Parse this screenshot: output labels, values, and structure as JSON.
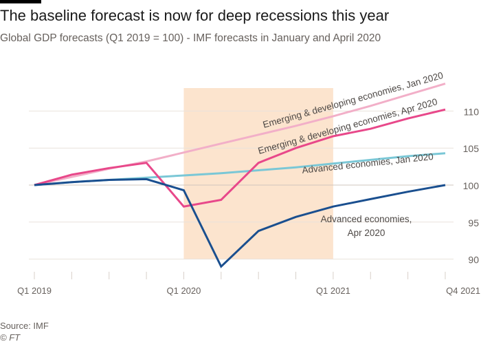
{
  "header": {
    "title": "The baseline forecast is now for deep recessions this year",
    "subtitle": "Global GDP forecasts (Q1 2019 = 100) - IMF forecasts in January and April 2020"
  },
  "footer": {
    "source": "Source: IMF",
    "copyright": "© FT"
  },
  "chart_data": {
    "type": "line",
    "title": "The baseline forecast is now for deep recessions this year",
    "subtitle": "Global GDP forecasts (Q1 2019 = 100) - IMF forecasts in January and April 2020",
    "xlabel": "",
    "ylabel": "",
    "x": [
      "Q1 2019",
      "Q2 2019",
      "Q3 2019",
      "Q4 2019",
      "Q1 2020",
      "Q2 2020",
      "Q3 2020",
      "Q4 2020",
      "Q1 2021",
      "Q2 2021",
      "Q3 2021",
      "Q4 2021"
    ],
    "x_tick_labels": [
      {
        "index": 0,
        "label": "Q1 2019"
      },
      {
        "index": 4,
        "label": "Q1 2020"
      },
      {
        "index": 8,
        "label": "Q1 2021"
      },
      {
        "index": 11,
        "label": "Q4 2021"
      }
    ],
    "ylim": [
      90,
      112
    ],
    "y_ticks": [
      90,
      95,
      100,
      105,
      110
    ],
    "y_axis_side": "right",
    "grid": true,
    "shaded_range": {
      "from": "Q1 2020",
      "to": "Q1 2021",
      "color": "#fce4ce"
    },
    "series": [
      {
        "name": "Emerging & developing economies, Jan 2020",
        "color": "#f2afc8",
        "values": [
          100,
          101.1,
          102.2,
          103.2,
          104.4,
          105.6,
          106.8,
          108.0,
          109.3,
          110.7,
          112.2,
          113.7
        ]
      },
      {
        "name": "Advanced economies, Jan 2020",
        "color": "#7ac7d6",
        "values": [
          100,
          100.4,
          100.7,
          101.0,
          101.3,
          101.6,
          102.0,
          102.4,
          102.9,
          103.4,
          103.9,
          104.3
        ]
      },
      {
        "name": "Emerging & developing economies, Apr 2020",
        "color": "#e8488a",
        "values": [
          100,
          101.4,
          102.3,
          103.0,
          97.1,
          98.0,
          103.0,
          105.0,
          106.6,
          107.6,
          109.0,
          110.2
        ]
      },
      {
        "name": "Advanced economies, Apr 2020",
        "color": "#1a4f8f",
        "values": [
          100,
          100.4,
          100.7,
          100.8,
          99.3,
          89.0,
          93.8,
          95.7,
          97.1,
          98.1,
          99.1,
          100.0
        ]
      }
    ],
    "annotations": [
      {
        "text": "Emerging & developing economies, Jan 2020",
        "series": 0
      },
      {
        "text": "Emerging & developing economies, Apr 2020",
        "series": 2
      },
      {
        "text": "Advanced economies, Jan 2020",
        "series": 1
      },
      {
        "text": "Advanced economies,",
        "series": 3
      },
      {
        "text": "Apr 2020",
        "series": 3
      }
    ]
  }
}
